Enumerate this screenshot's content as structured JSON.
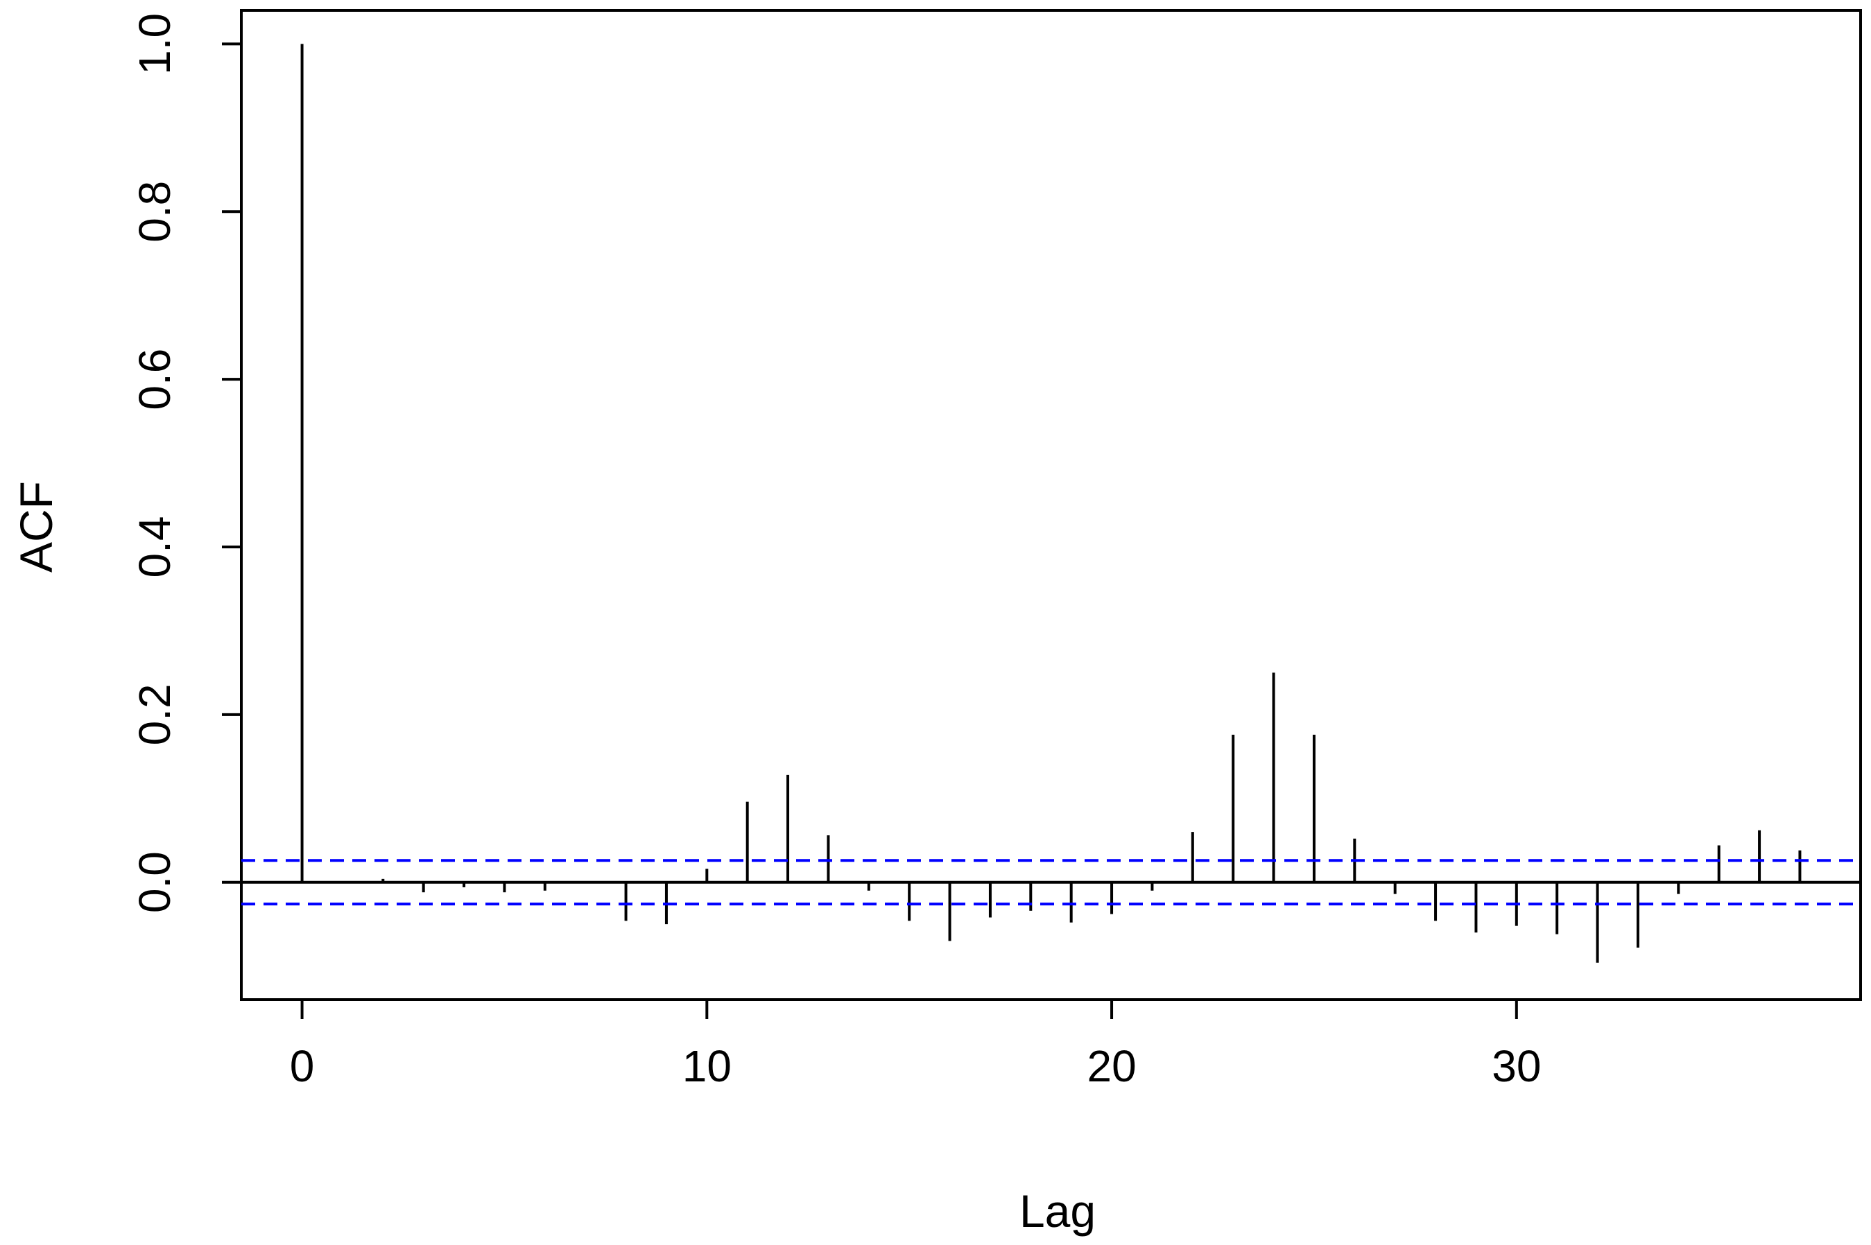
{
  "chart_data": {
    "type": "bar",
    "xlabel": "Lag",
    "ylabel": "ACF",
    "xlim": [
      -1.5,
      38.5
    ],
    "ylim": [
      -0.14,
      1.04
    ],
    "x_ticks": [
      "0",
      "10",
      "20",
      "30"
    ],
    "y_ticks": [
      "0.0",
      "0.2",
      "0.4",
      "0.6",
      "0.8",
      "1.0"
    ],
    "lags": [
      0,
      1,
      2,
      3,
      4,
      5,
      6,
      7,
      8,
      9,
      10,
      11,
      12,
      13,
      14,
      15,
      16,
      17,
      18,
      19,
      20,
      21,
      22,
      23,
      24,
      25,
      26,
      27,
      28,
      29,
      30,
      31,
      32,
      33,
      34,
      35,
      36,
      37
    ],
    "values": [
      1.0,
      0.0,
      0.004,
      -0.012,
      -0.006,
      -0.012,
      -0.01,
      0.0,
      -0.046,
      -0.05,
      0.016,
      0.096,
      0.128,
      0.056,
      -0.01,
      -0.046,
      -0.07,
      -0.042,
      -0.034,
      -0.048,
      -0.038,
      -0.01,
      0.06,
      0.176,
      0.25,
      0.176,
      0.052,
      -0.014,
      -0.046,
      -0.06,
      -0.052,
      -0.062,
      -0.096,
      -0.078,
      -0.014,
      0.044,
      0.062,
      0.038
    ],
    "confidence_bound": 0.026,
    "colors": {
      "bars": "#000000",
      "confidence": "#0000ff",
      "axes": "#000000"
    }
  }
}
